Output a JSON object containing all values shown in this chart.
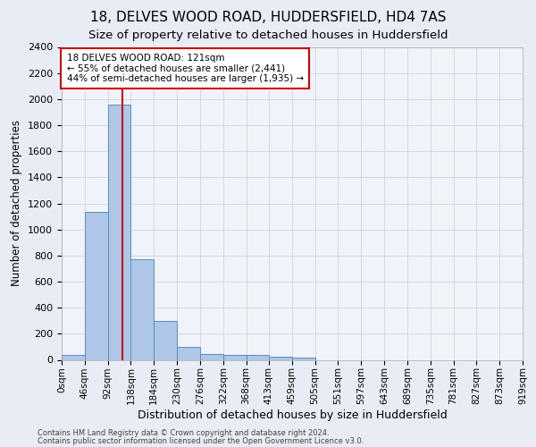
{
  "title": "18, DELVES WOOD ROAD, HUDDERSFIELD, HD4 7AS",
  "subtitle": "Size of property relative to detached houses in Huddersfield",
  "xlabel": "Distribution of detached houses by size in Huddersfield",
  "ylabel": "Number of detached properties",
  "footer_line1": "Contains HM Land Registry data © Crown copyright and database right 2024.",
  "footer_line2": "Contains public sector information licensed under the Open Government Licence v3.0.",
  "bar_edges": [
    0,
    46,
    92,
    138,
    184,
    230,
    276,
    322,
    368,
    413,
    459,
    505,
    551,
    597,
    643,
    689,
    735,
    781,
    827,
    873,
    919
  ],
  "bar_heights": [
    35,
    1135,
    1960,
    770,
    300,
    100,
    45,
    40,
    35,
    25,
    20,
    0,
    0,
    0,
    0,
    0,
    0,
    0,
    0,
    0
  ],
  "bar_color": "#aec6e8",
  "bar_edgecolor": "#5b8db8",
  "property_sqm": 121,
  "annotation_line1": "18 DELVES WOOD ROAD: 121sqm",
  "annotation_line2": "← 55% of detached houses are smaller (2,441)",
  "annotation_line3": "44% of semi-detached houses are larger (1,935) →",
  "annotation_box_edgecolor": "#cc0000",
  "annotation_box_facecolor": "#ffffff",
  "red_line_color": "#cc0000",
  "ylim": [
    0,
    2400
  ],
  "yticks": [
    0,
    200,
    400,
    600,
    800,
    1000,
    1200,
    1400,
    1600,
    1800,
    2000,
    2200,
    2400
  ],
  "background_color": "#e8edf5",
  "plot_background_color": "#f0f4fa",
  "title_fontsize": 11,
  "subtitle_fontsize": 9.5,
  "tick_label_fontsize": 7.5,
  "ylabel_fontsize": 8.5,
  "xlabel_fontsize": 9
}
